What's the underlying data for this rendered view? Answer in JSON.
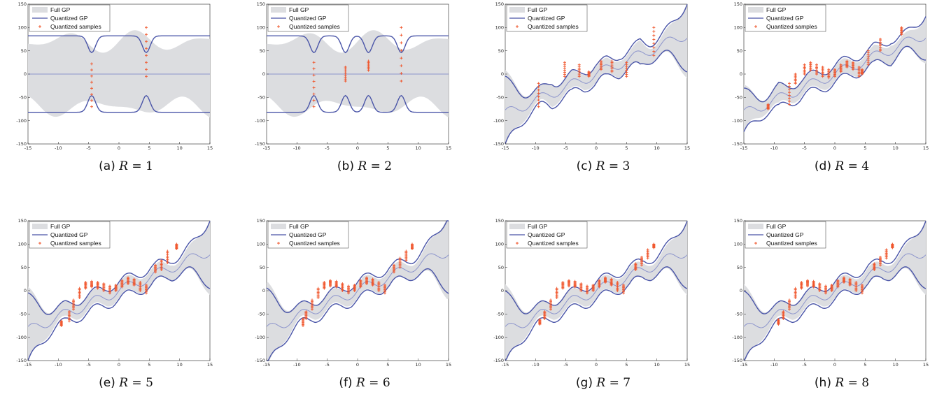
{
  "legend": {
    "full_gp": "Full GP",
    "quantized_gp": "Quantized GP",
    "quantized_samples": "Quantized samples"
  },
  "colors": {
    "band": "#dcdde0",
    "gp_line": "#4a55a8",
    "gp_mean": "#8d95cc",
    "samples": "#f0542a"
  },
  "axes": {
    "xlim": [
      -15,
      15
    ],
    "ylim": [
      -150,
      150
    ],
    "xticks": [
      -15,
      -10,
      -5,
      0,
      5,
      10,
      15
    ],
    "yticks": [
      -150,
      -100,
      -50,
      0,
      50,
      100,
      150
    ]
  },
  "chart_data": [
    {
      "type": "line",
      "caption_label": "(a)",
      "caption_value": "1",
      "R": 1,
      "sample_x": [
        -4.5,
        4.5
      ],
      "sample_y": [
        [
          -70,
          22
        ],
        [
          -5,
          100
        ]
      ]
    },
    {
      "type": "line",
      "caption_label": "(b)",
      "caption_value": "2",
      "R": 2,
      "sample_x": [
        -7.2,
        -2.0,
        1.8,
        7.2
      ],
      "sample_y": [
        [
          -70,
          25
        ],
        [
          -15,
          15
        ],
        [
          8,
          28
        ],
        [
          -15,
          100
        ]
      ]
    },
    {
      "type": "line",
      "caption_label": "(c)",
      "caption_value": "3",
      "R": 3,
      "sample_x": [
        -9.5,
        -5.2,
        -2.8,
        -1.2,
        0.8,
        2.6,
        5.0,
        9.5
      ],
      "sample_y": [
        [
          -70,
          -20
        ],
        [
          -5,
          25
        ],
        [
          -5,
          20
        ],
        [
          -5,
          5
        ],
        [
          10,
          28
        ],
        [
          5,
          28
        ],
        [
          -5,
          25
        ],
        [
          40,
          100
        ]
      ]
    },
    {
      "type": "line",
      "caption_label": "(d)",
      "caption_value": "4",
      "R": 4,
      "sample_x": [
        -11,
        -7.5,
        -6.5,
        -5,
        -4,
        -3,
        -2,
        -1,
        0,
        1,
        2,
        3,
        4,
        4.5,
        5.5,
        7.5,
        11
      ],
      "sample_y": [
        [
          -75,
          -65
        ],
        [
          -65,
          -20
        ],
        [
          -20,
          0
        ],
        [
          0,
          20
        ],
        [
          8,
          25
        ],
        [
          0,
          20
        ],
        [
          -5,
          15
        ],
        [
          -8,
          10
        ],
        [
          -5,
          10
        ],
        [
          5,
          20
        ],
        [
          15,
          28
        ],
        [
          10,
          25
        ],
        [
          -5,
          15
        ],
        [
          0,
          10
        ],
        [
          20,
          50
        ],
        [
          50,
          75
        ],
        [
          85,
          100
        ]
      ]
    },
    {
      "type": "line",
      "caption_label": "(e)",
      "caption_value": "5",
      "R": 5,
      "sample_x": [
        -9.5,
        -8.2,
        -7.5,
        -6.5,
        -5.5,
        -4.5,
        -3.5,
        -2.5,
        -1.5,
        -0.5,
        0.5,
        1.5,
        2.5,
        3.5,
        4.5,
        6,
        7,
        8,
        9.5
      ],
      "sample_y": [
        [
          -75,
          -65
        ],
        [
          -65,
          -45
        ],
        [
          -40,
          -20
        ],
        [
          -15,
          5
        ],
        [
          5,
          18
        ],
        [
          8,
          20
        ],
        [
          5,
          18
        ],
        [
          0,
          15
        ],
        [
          -5,
          10
        ],
        [
          0,
          12
        ],
        [
          8,
          22
        ],
        [
          15,
          28
        ],
        [
          12,
          25
        ],
        [
          0,
          18
        ],
        [
          -5,
          12
        ],
        [
          40,
          55
        ],
        [
          45,
          65
        ],
        [
          60,
          85
        ],
        [
          90,
          100
        ]
      ]
    },
    {
      "type": "line",
      "caption_label": "(f)",
      "caption_value": "6",
      "R": 6,
      "sample_x": [
        -9,
        -8.5,
        -7.5,
        -6.5,
        -5.5,
        -4.5,
        -3.5,
        -2.5,
        -1.5,
        -0.5,
        0.5,
        1.5,
        2.5,
        3.5,
        4.5,
        6,
        7,
        8,
        9
      ],
      "sample_y": [
        [
          -75,
          -60
        ],
        [
          -60,
          -45
        ],
        [
          -40,
          -20
        ],
        [
          -15,
          5
        ],
        [
          5,
          18
        ],
        [
          10,
          22
        ],
        [
          8,
          20
        ],
        [
          0,
          15
        ],
        [
          -5,
          10
        ],
        [
          0,
          12
        ],
        [
          8,
          22
        ],
        [
          15,
          28
        ],
        [
          12,
          25
        ],
        [
          0,
          18
        ],
        [
          -5,
          12
        ],
        [
          40,
          55
        ],
        [
          50,
          70
        ],
        [
          65,
          85
        ],
        [
          90,
          100
        ]
      ]
    },
    {
      "type": "line",
      "caption_label": "(g)",
      "caption_value": "7",
      "R": 7,
      "sample_x": [
        -9.3,
        -8.5,
        -7.5,
        -6.5,
        -5.5,
        -4.5,
        -3.5,
        -2.5,
        -1.5,
        -0.5,
        0.5,
        1.5,
        2.5,
        3.5,
        4.5,
        6.5,
        7.5,
        8.5,
        9.5
      ],
      "sample_y": [
        [
          -72,
          -62
        ],
        [
          -60,
          -45
        ],
        [
          -40,
          -20
        ],
        [
          -15,
          5
        ],
        [
          5,
          18
        ],
        [
          10,
          22
        ],
        [
          8,
          20
        ],
        [
          0,
          15
        ],
        [
          -5,
          10
        ],
        [
          0,
          12
        ],
        [
          8,
          22
        ],
        [
          18,
          28
        ],
        [
          12,
          25
        ],
        [
          0,
          18
        ],
        [
          -5,
          12
        ],
        [
          45,
          58
        ],
        [
          55,
          72
        ],
        [
          70,
          88
        ],
        [
          92,
          100
        ]
      ]
    },
    {
      "type": "line",
      "caption_label": "(h)",
      "caption_value": "8",
      "R": 8,
      "sample_x": [
        -9.3,
        -8.5,
        -7.5,
        -6.5,
        -5.5,
        -4.5,
        -3.5,
        -2.5,
        -1.5,
        -0.5,
        0.5,
        1.5,
        2.5,
        3.5,
        4.5,
        6.5,
        7.5,
        8.5,
        9.5
      ],
      "sample_y": [
        [
          -72,
          -62
        ],
        [
          -60,
          -45
        ],
        [
          -40,
          -20
        ],
        [
          -15,
          5
        ],
        [
          5,
          18
        ],
        [
          10,
          22
        ],
        [
          8,
          20
        ],
        [
          0,
          15
        ],
        [
          -5,
          10
        ],
        [
          0,
          12
        ],
        [
          8,
          22
        ],
        [
          18,
          28
        ],
        [
          12,
          25
        ],
        [
          0,
          18
        ],
        [
          -5,
          12
        ],
        [
          45,
          58
        ],
        [
          55,
          72
        ],
        [
          70,
          88
        ],
        [
          92,
          100
        ]
      ]
    }
  ]
}
